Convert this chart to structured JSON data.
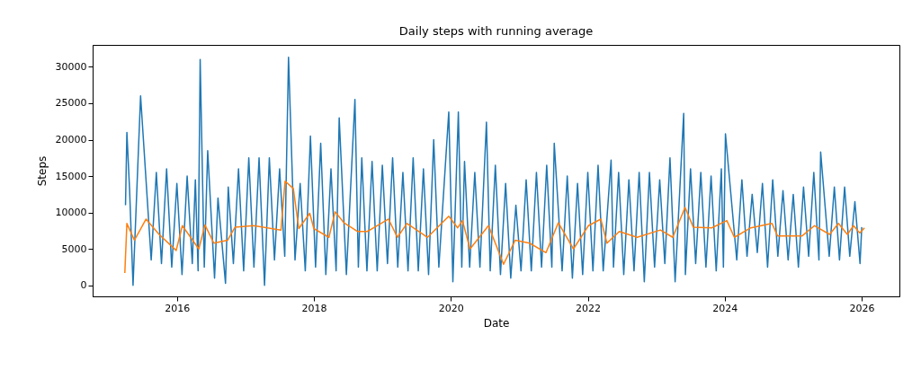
{
  "chart_data": {
    "type": "line",
    "title": "Daily steps with running average",
    "xlabel": "Date",
    "ylabel": "Steps",
    "xlim": [
      2014.77,
      2026.55
    ],
    "xticks": [
      2016,
      2018,
      2020,
      2022,
      2024,
      2026
    ],
    "ylim": [
      -1500,
      33000
    ],
    "yticks": [
      0,
      5000,
      10000,
      15000,
      20000,
      25000,
      30000
    ],
    "grid": false,
    "series": [
      {
        "color": "#1f77b4",
        "x": [
          2015.25,
          2015.27,
          2015.31,
          2015.36,
          2015.47,
          2015.625,
          2015.7,
          2015.775,
          2015.85,
          2015.925,
          2016.0,
          2016.075,
          2016.15,
          2016.225,
          2016.27,
          2016.31,
          2016.34,
          2016.4,
          2016.45,
          2016.55,
          2016.6,
          2016.71,
          2016.75,
          2016.825,
          2016.9,
          2016.975,
          2017.05,
          2017.125,
          2017.2,
          2017.28,
          2017.35,
          2017.425,
          2017.5,
          2017.575,
          2017.63,
          2017.725,
          2017.8,
          2017.875,
          2017.95,
          2018.025,
          2018.1,
          2018.175,
          2018.25,
          2018.325,
          2018.37,
          2018.475,
          2018.6,
          2018.65,
          2018.7,
          2018.775,
          2018.85,
          2018.925,
          2019.0,
          2019.075,
          2019.15,
          2019.225,
          2019.3,
          2019.375,
          2019.45,
          2019.525,
          2019.6,
          2019.675,
          2019.75,
          2019.825,
          2019.97,
          2020.03,
          2020.11,
          2020.16,
          2020.2,
          2020.275,
          2020.35,
          2020.425,
          2020.52,
          2020.575,
          2020.65,
          2020.725,
          2020.8,
          2020.875,
          2020.95,
          2021.025,
          2021.1,
          2021.175,
          2021.25,
          2021.325,
          2021.4,
          2021.475,
          2021.51,
          2021.625,
          2021.7,
          2021.775,
          2021.85,
          2021.925,
          2022.0,
          2022.075,
          2022.15,
          2022.225,
          2022.34,
          2022.375,
          2022.45,
          2022.525,
          2022.6,
          2022.675,
          2022.75,
          2022.825,
          2022.9,
          2022.975,
          2023.05,
          2023.125,
          2023.2,
          2023.275,
          2023.4,
          2023.425,
          2023.5,
          2023.575,
          2023.65,
          2023.725,
          2023.8,
          2023.875,
          2023.95,
          2023.98,
          2024.01,
          2024.175,
          2024.25,
          2024.325,
          2024.4,
          2024.475,
          2024.55,
          2024.625,
          2024.7,
          2024.775,
          2024.85,
          2024.925,
          2025.0,
          2025.075,
          2025.15,
          2025.225,
          2025.3,
          2025.375,
          2025.4,
          2025.525,
          2025.6,
          2025.675,
          2025.75,
          2025.825,
          2025.9,
          2025.975,
          2026.0
        ],
        "values": [
          11000,
          21000,
          13000,
          0,
          26000,
          3500,
          15500,
          3000,
          16000,
          2500,
          14000,
          1500,
          15000,
          3000,
          14500,
          2000,
          31000,
          2500,
          18500,
          1000,
          12000,
          300,
          13500,
          3000,
          16000,
          2000,
          17500,
          2500,
          17500,
          0,
          17500,
          3500,
          16000,
          4000,
          31300,
          3500,
          14000,
          2000,
          20500,
          2500,
          19500,
          1500,
          16000,
          2000,
          23000,
          1500,
          25500,
          2500,
          17500,
          2000,
          17000,
          2000,
          16500,
          3000,
          17500,
          2500,
          15500,
          2000,
          17500,
          2000,
          16000,
          1500,
          20000,
          2500,
          23800,
          500,
          23800,
          2500,
          17000,
          2500,
          15500,
          2500,
          22400,
          2000,
          16500,
          1500,
          14000,
          1000,
          11000,
          2000,
          14500,
          2000,
          15500,
          2500,
          16500,
          2500,
          19500,
          2000,
          15000,
          1000,
          14000,
          1500,
          15500,
          2000,
          16500,
          2000,
          17200,
          2500,
          15500,
          1500,
          14500,
          2000,
          15500,
          500,
          15500,
          2500,
          14500,
          3000,
          17500,
          500,
          23600,
          1500,
          16000,
          3000,
          15500,
          2500,
          15000,
          2000,
          16000,
          2500,
          20800,
          3500,
          14500,
          4000,
          12500,
          4500,
          14000,
          2500,
          14500,
          4000,
          13000,
          3500,
          12500,
          2500,
          13500,
          4000,
          15500,
          3500,
          18300,
          4000,
          13500,
          3500,
          13500,
          4000,
          11500,
          3000,
          8000
        ]
      },
      {
        "color": "#ff7f0e",
        "x": [
          2015.24,
          2015.27,
          2015.38,
          2015.55,
          2015.74,
          2015.99,
          2016.08,
          2016.32,
          2016.41,
          2016.54,
          2016.74,
          2016.85,
          2017.12,
          2017.52,
          2017.58,
          2017.7,
          2017.78,
          2017.94,
          2018.0,
          2018.22,
          2018.31,
          2018.44,
          2018.64,
          2018.78,
          2019.09,
          2019.22,
          2019.36,
          2019.66,
          2019.97,
          2020.1,
          2020.17,
          2020.28,
          2020.55,
          2020.77,
          2020.94,
          2021.15,
          2021.39,
          2021.57,
          2021.79,
          2022.01,
          2022.19,
          2022.28,
          2022.46,
          2022.72,
          2023.06,
          2023.24,
          2023.42,
          2023.54,
          2023.81,
          2024.03,
          2024.14,
          2024.38,
          2024.69,
          2024.77,
          2025.13,
          2025.31,
          2025.53,
          2025.66,
          2025.79,
          2025.88,
          2025.97,
          2026.04
        ],
        "values": [
          1700,
          8500,
          6200,
          9100,
          7000,
          4800,
          8200,
          5000,
          8300,
          5800,
          6200,
          8000,
          8200,
          7600,
          14300,
          13300,
          7800,
          9900,
          7800,
          6600,
          10100,
          8600,
          7400,
          7400,
          9100,
          6600,
          8500,
          6600,
          9500,
          7900,
          8900,
          5000,
          8200,
          2900,
          6200,
          5800,
          4500,
          8600,
          5000,
          8200,
          9100,
          5800,
          7400,
          6600,
          7600,
          6600,
          10700,
          8000,
          7900,
          8900,
          6600,
          7900,
          8500,
          6800,
          6800,
          8200,
          7000,
          8500,
          7000,
          8200,
          7200,
          7900
        ]
      }
    ]
  }
}
